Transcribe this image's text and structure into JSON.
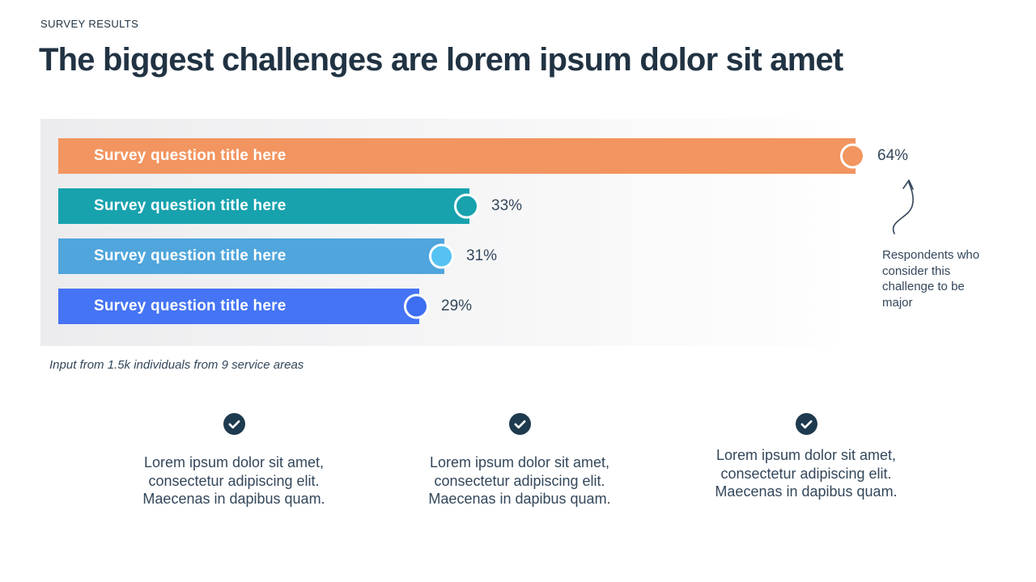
{
  "slide": {
    "eyebrow": "SURVEY RESULTS",
    "title": "The biggest challenges are lorem ipsum dolor sit amet",
    "caption": "Input from 1.5k individuals from 9 service areas"
  },
  "chart_data": {
    "type": "bar",
    "orientation": "horizontal",
    "categories": [
      "Survey question title here",
      "Survey question title here",
      "Survey question title here",
      "Survey question title here"
    ],
    "values": [
      64,
      33,
      31,
      29
    ],
    "value_labels": [
      "64%",
      "33%",
      "31%",
      "29%"
    ],
    "bar_colors": [
      "#F29560",
      "#17A2AE",
      "#4FA5DC",
      "#4574F4"
    ],
    "dot_colors": [
      "#F29560",
      "#17A2AE",
      "#55C2F2",
      "#3D6EF2"
    ],
    "xlim": [
      0,
      100
    ],
    "grid": false,
    "legend": false,
    "annotation": {
      "icon": "curved-arrow-icon",
      "text": "Respondents who consider this challenge to be major",
      "points_to": "64%"
    }
  },
  "footer": {
    "columns": [
      {
        "icon": "check-circle-icon",
        "text": "Lorem ipsum dolor sit amet, consectetur adipiscing elit. Maecenas in dapibus quam."
      },
      {
        "icon": "check-circle-icon",
        "text": "Lorem ipsum dolor sit amet, consectetur adipiscing elit. Maecenas in dapibus quam."
      },
      {
        "icon": "check-circle-icon",
        "text": "Lorem ipsum dolor sit amet, consectetur adipiscing elit. Maecenas in dapibus quam."
      }
    ]
  },
  "colors": {
    "heading": "#213343",
    "body_text": "#33475b",
    "panel_left": "#ececee",
    "panel_right": "#fefefe",
    "check_circle": "#1e3a4e"
  }
}
